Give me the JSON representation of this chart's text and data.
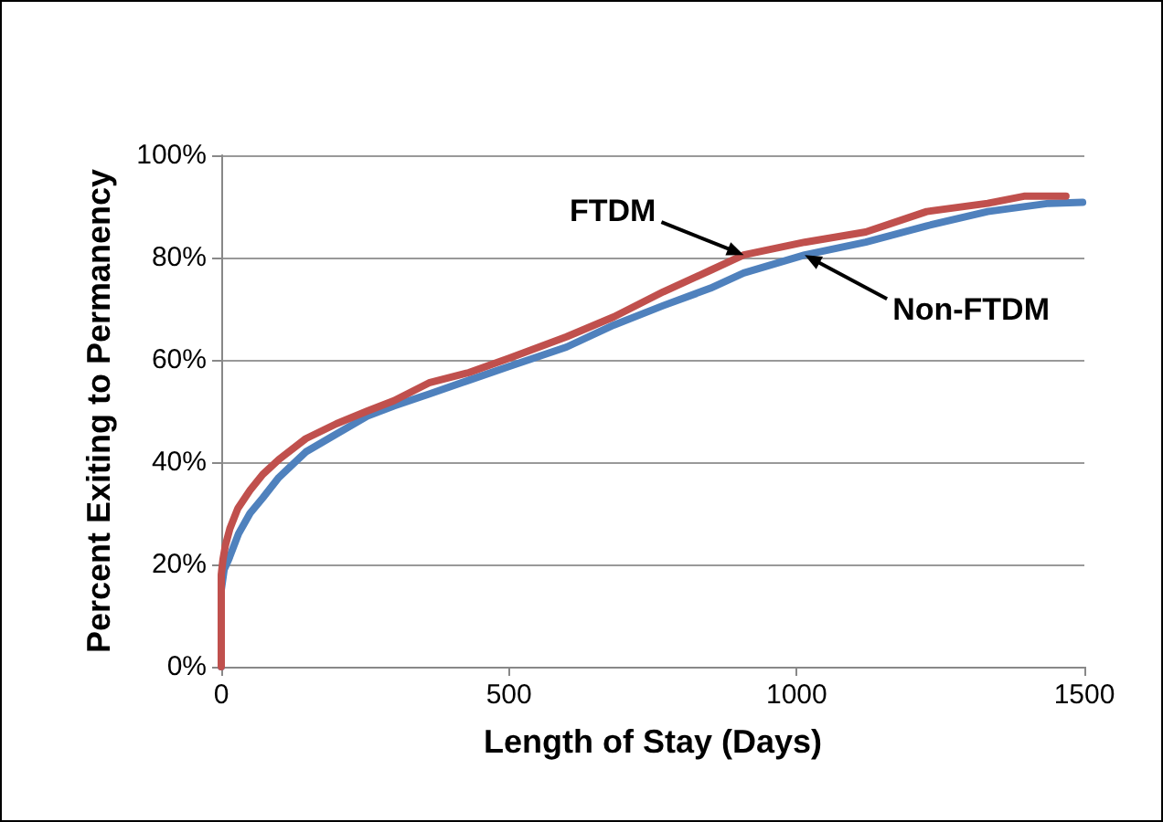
{
  "chart_data": {
    "type": "line",
    "xlabel": "Length of Stay (Days)",
    "ylabel": "Percent Exiting to Permanency",
    "xlim": [
      0,
      1500
    ],
    "xticks": [
      0,
      500,
      1000,
      1500
    ],
    "ylim": [
      0,
      100
    ],
    "yticks": [
      {
        "value": 0,
        "label": "0%"
      },
      {
        "value": 20,
        "label": "20%"
      },
      {
        "value": 40,
        "label": "40%"
      },
      {
        "value": 60,
        "label": "60%"
      },
      {
        "value": 80,
        "label": "80%"
      },
      {
        "value": 100,
        "label": "100%"
      }
    ],
    "grid": "y",
    "legend": false,
    "marker": "none",
    "line_style": "solid",
    "series": [
      {
        "name": "Non-FTDM",
        "color": "#4f81bd",
        "x": [
          0,
          0,
          5,
          13,
          30,
          50,
          72,
          100,
          147,
          200,
          254,
          300,
          361,
          430,
          500,
          600,
          682,
          768,
          850,
          908,
          1014,
          1120,
          1226,
          1332,
          1438,
          1497
        ],
        "values": [
          0,
          15,
          19,
          21,
          26,
          30,
          33,
          37,
          42,
          45.5,
          49,
          51,
          53.3,
          56,
          58.7,
          62.5,
          66.8,
          70.6,
          74,
          77,
          80.5,
          83,
          86.2,
          89,
          90.6,
          90.8
        ]
      },
      {
        "name": "FTDM",
        "color": "#c0504d",
        "x": [
          0,
          0,
          3,
          7,
          15,
          29,
          50,
          72,
          100,
          147,
          200,
          254,
          300,
          361,
          430,
          500,
          600,
          682,
          768,
          850,
          908,
          1014,
          1120,
          1226,
          1332,
          1395,
          1468
        ],
        "values": [
          0,
          18,
          21,
          23.6,
          27,
          31,
          34.5,
          37.6,
          40.5,
          44.6,
          47.5,
          50,
          52,
          55.5,
          57.5,
          60.3,
          64.5,
          68.4,
          73.3,
          77.5,
          80.5,
          83,
          85,
          89,
          90.6,
          92,
          92
        ]
      }
    ]
  }
}
